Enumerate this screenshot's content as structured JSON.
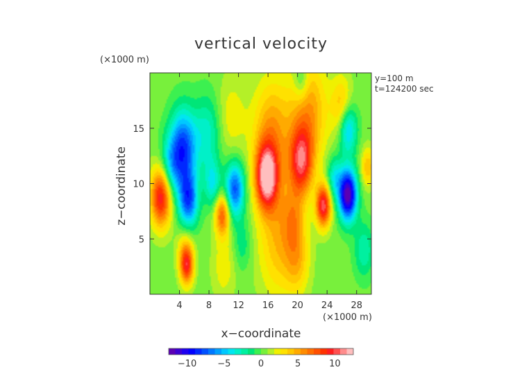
{
  "chart_data": {
    "type": "heatmap",
    "title": "vertical velocity",
    "xlabel": "x−coordinate",
    "ylabel": "z−coordinate",
    "x_unit": "(×1000 m)",
    "y_unit": "(×1000 m)",
    "annotations": [
      "y=100 m",
      "t=124200 sec"
    ],
    "xlim": [
      0,
      30
    ],
    "ylim": [
      0,
      20
    ],
    "x_ticks": [
      4,
      8,
      12,
      16,
      20,
      24,
      28
    ],
    "y_ticks": [
      5,
      10,
      15
    ],
    "x_tick_labels": [
      "4",
      "8",
      "12",
      "16",
      "20",
      "24",
      "28"
    ],
    "y_tick_labels": [
      "5",
      "10",
      "15"
    ],
    "colorbar": {
      "range": [
        -12.5,
        12.5
      ],
      "ticks": [
        -10,
        -5,
        0,
        5,
        10
      ],
      "tick_labels": [
        "−10",
        "−5",
        "0",
        "5",
        "10"
      ],
      "colors": [
        "#5a00b4",
        "#3c00d2",
        "#1e00f0",
        "#0000ff",
        "#0028ff",
        "#0050ff",
        "#0078ff",
        "#00a0ff",
        "#00c8ff",
        "#00e6f0",
        "#00f0c8",
        "#00f0a0",
        "#00e678",
        "#3cf050",
        "#78f03c",
        "#b4f028",
        "#f0f000",
        "#ffe100",
        "#ffc800",
        "#ffaa00",
        "#ff8c00",
        "#ff6e00",
        "#ff5000",
        "#ff3200",
        "#ff1e1e",
        "#ff5050",
        "#ff8c8c",
        "#ffbebe"
      ]
    },
    "features": [
      {
        "x": 1.5,
        "z": 8.8,
        "w": 1.4,
        "v": 9.5
      },
      {
        "x": 2.8,
        "z": 11.5,
        "w": 1.4,
        "v": -4
      },
      {
        "x": 4.5,
        "z": 13.2,
        "w": 1.8,
        "v": -8.5
      },
      {
        "x": 5.2,
        "z": 8.5,
        "w": 1.3,
        "v": -8
      },
      {
        "x": 7.8,
        "z": 14.5,
        "w": 1.8,
        "v": -3.5
      },
      {
        "x": 8.5,
        "z": 10.0,
        "w": 1.1,
        "v": -4
      },
      {
        "x": 9.8,
        "z": 7.2,
        "w": 1.0,
        "v": 7
      },
      {
        "x": 11.5,
        "z": 9.5,
        "w": 1.3,
        "v": -8
      },
      {
        "x": 11.0,
        "z": 16.0,
        "w": 2.0,
        "v": 2
      },
      {
        "x": 15.8,
        "z": 10.6,
        "w": 1.5,
        "v": 11
      },
      {
        "x": 16.5,
        "z": 14.5,
        "w": 2.6,
        "v": 5
      },
      {
        "x": 17.5,
        "z": 5.0,
        "w": 2.8,
        "v": 4
      },
      {
        "x": 20.5,
        "z": 12.0,
        "w": 1.6,
        "v": 8.5
      },
      {
        "x": 21.5,
        "z": 16.5,
        "w": 2.5,
        "v": 5
      },
      {
        "x": 23.5,
        "z": 8.0,
        "w": 1.0,
        "v": 10
      },
      {
        "x": 25.0,
        "z": 10.5,
        "w": 1.0,
        "v": -4
      },
      {
        "x": 26.8,
        "z": 9.0,
        "w": 1.2,
        "v": -13
      },
      {
        "x": 26.8,
        "z": 15.0,
        "w": 1.2,
        "v": -6
      },
      {
        "x": 26.0,
        "z": 17.0,
        "w": 1.4,
        "v": 4
      },
      {
        "x": 29.5,
        "z": 11.5,
        "w": 0.9,
        "v": 4
      },
      {
        "x": 29.0,
        "z": 4.0,
        "w": 1.3,
        "v": -3
      },
      {
        "x": 4.8,
        "z": 3.8,
        "w": 1.1,
        "v": 3.5
      },
      {
        "x": 5.0,
        "z": 2.5,
        "w": 0.9,
        "v": 7
      },
      {
        "x": 10.0,
        "z": 2.5,
        "w": 1.6,
        "v": 2
      },
      {
        "x": 12.5,
        "z": 4.5,
        "w": 1.2,
        "v": -2
      },
      {
        "x": 20.0,
        "z": 3.0,
        "w": 1.6,
        "v": 3
      },
      {
        "x": 19.5,
        "z": 6.8,
        "w": 1.5,
        "v": 3
      },
      {
        "x": 20.5,
        "z": 19.3,
        "w": 1.0,
        "v": -3
      }
    ]
  }
}
